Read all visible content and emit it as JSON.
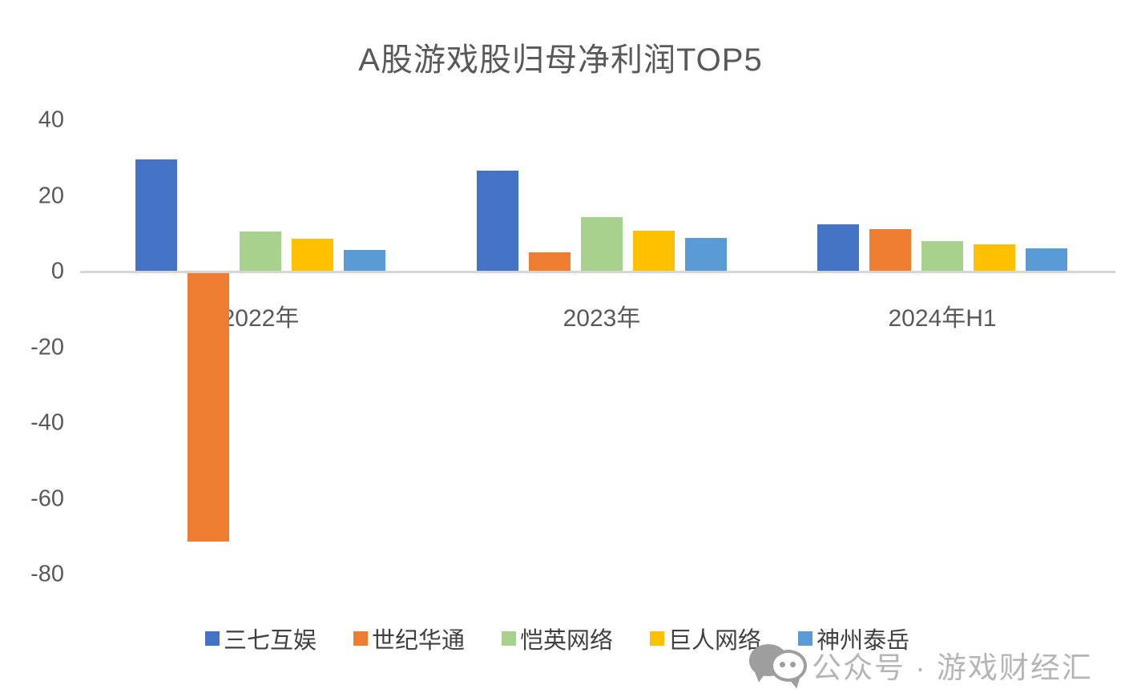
{
  "title": "A股游戏股归母净利润TOP5",
  "chart_data": {
    "type": "bar",
    "categories": [
      "2022年",
      "2023年",
      "2024年H1"
    ],
    "series": [
      {
        "name": "三七互娱",
        "color": "#4472C4",
        "values": [
          29.5,
          26.5,
          12.3
        ]
      },
      {
        "name": "世纪华通",
        "color": "#ED7D31",
        "values": [
          -71.0,
          4.8,
          11.1
        ]
      },
      {
        "name": "恺英网络",
        "color": "#A9D18E",
        "values": [
          10.3,
          14.2,
          7.9
        ]
      },
      {
        "name": "巨人网络",
        "color": "#FFC000",
        "values": [
          8.4,
          10.5,
          7.0
        ]
      },
      {
        "name": "神州泰岳",
        "color": "#5B9BD5",
        "values": [
          5.5,
          8.6,
          6.0
        ]
      }
    ],
    "y_ticks": [
      40,
      20,
      0,
      -20,
      -40,
      -60,
      -80
    ],
    "ylim": [
      -80,
      40
    ],
    "grid": false,
    "legend_position": "bottom",
    "title": "A股游戏股归母净利润TOP5"
  },
  "colors": {
    "axis_line": "#d6d6d6",
    "axis_text": "#595959",
    "legend_text": "#404040",
    "watermark": "#b5b5b5"
  },
  "watermark": {
    "icon": "wechat-icon",
    "text": "公众号 · 游戏财经汇"
  }
}
